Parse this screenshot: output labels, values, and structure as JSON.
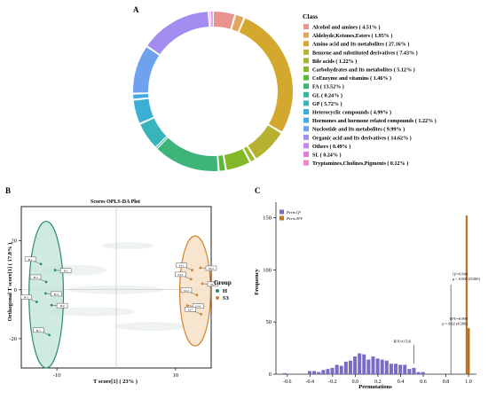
{
  "panels": {
    "a": "A",
    "b": "B",
    "c": "C"
  },
  "chart_data": [
    {
      "type": "pie",
      "style": "donut",
      "legend_title": "Class",
      "legend_placement": "right",
      "slices": [
        {
          "label": "Alcohol and amines ( 4.51% )",
          "value": 4.51,
          "color": "#e8948c"
        },
        {
          "label": "Aldehyde,Ketones,Esters ( 1.95% )",
          "value": 1.95,
          "color": "#dfa75e"
        },
        {
          "label": "Amino acid and Its metabolites ( 27.16% )",
          "value": 27.16,
          "color": "#d4a82e"
        },
        {
          "label": "Benzene and substituted derivatives ( 7.43% )",
          "value": 7.43,
          "color": "#b6b131"
        },
        {
          "label": "Bile acids ( 1.22% )",
          "value": 1.22,
          "color": "#9fb92e"
        },
        {
          "label": "Carbohydrates and Its metabolites ( 5.12% )",
          "value": 5.12,
          "color": "#84b829"
        },
        {
          "label": "CoEnzyme and vitamins ( 1.46% )",
          "value": 1.46,
          "color": "#5cb83a"
        },
        {
          "label": "FA ( 13.52% )",
          "value": 13.52,
          "color": "#3db579"
        },
        {
          "label": "GL ( 0.24% )",
          "value": 0.24,
          "color": "#37b49c"
        },
        {
          "label": "GP ( 5.72% )",
          "value": 5.72,
          "color": "#38b4bb"
        },
        {
          "label": "Heterocyclic compounds ( 4.99% )",
          "value": 4.99,
          "color": "#3cb0d4"
        },
        {
          "label": "Hormones and hormone related compounds ( 1.22% )",
          "value": 1.22,
          "color": "#46a9e6"
        },
        {
          "label": "Nucleotide and Its metabolites ( 9.99% )",
          "value": 9.99,
          "color": "#6ea1ee"
        },
        {
          "label": "Organic acid and Its derivatives ( 14.62% )",
          "value": 14.62,
          "color": "#a18ef0"
        },
        {
          "label": "Others ( 0.49% )",
          "value": 0.49,
          "color": "#c785ef"
        },
        {
          "label": "SL ( 0.24% )",
          "value": 0.24,
          "color": "#e07ee0"
        },
        {
          "label": "Tryptamines,Cholines,Pigments ( 0.12% )",
          "value": 0.12,
          "color": "#ee84c4"
        }
      ]
    },
    {
      "type": "scatter",
      "title": "Scores OPLS-DA Plot",
      "xlabel": "T score[1] ( 23% )",
      "ylabel": "Orthogonal T score[1] ( 17.8% )",
      "xlim": [
        -16,
        16
      ],
      "ylim": [
        -32,
        34
      ],
      "xticks": [
        -10,
        10
      ],
      "yticks": [
        -20,
        0,
        20
      ],
      "legend_title": "Group",
      "series": [
        {
          "name": "H",
          "color": "#2e8b6e",
          "points": [
            [
              -12.7,
              10.5
            ],
            [
              -10.3,
              8.0
            ],
            [
              -11.8,
              3.2
            ],
            [
              -11.9,
              -1.5
            ],
            [
              -13.4,
              -5.0
            ],
            [
              -10.9,
              -6.3
            ],
            [
              -11.3,
              -18.5
            ]
          ],
          "labels": [
            "H-1",
            "H-2",
            "H-3",
            "H-4",
            "H-5",
            "H-6",
            "H-7"
          ]
        },
        {
          "name": "S3",
          "color": "#d2812c",
          "points": [
            [
              12.8,
              8.0
            ],
            [
              14.2,
              9.0
            ],
            [
              12.6,
              4.3
            ],
            [
              14.5,
              2.5
            ],
            [
              13.6,
              -2.2
            ],
            [
              12.0,
              -6.5
            ],
            [
              14.3,
              -10.0
            ]
          ],
          "labels": [
            "S3-1",
            "S3-2",
            "S3-3",
            "S3-4",
            "S3-5",
            "S3-6",
            "S3-7"
          ]
        }
      ]
    },
    {
      "type": "bar",
      "subtype": "histogram",
      "xlabel": "Permutations",
      "ylabel": "Frequency",
      "xlim": [
        -0.7,
        1.07
      ],
      "ylim": [
        0,
        165
      ],
      "xticks": [
        "-0.6",
        "-0.4",
        "-0.2",
        "0.0",
        "0.2",
        "0.4",
        "0.6",
        "0.8",
        "1.0"
      ],
      "yticks": [
        0,
        50,
        100,
        150
      ],
      "legend_placement": "top-left",
      "series": [
        {
          "name": "Perm Q²",
          "color": "#7b6bc4",
          "bins": [
            [
              -0.62,
              1
            ],
            [
              -0.4,
              3
            ],
            [
              -0.36,
              3
            ],
            [
              -0.32,
              2
            ],
            [
              -0.28,
              4
            ],
            [
              -0.24,
              5
            ],
            [
              -0.2,
              6
            ],
            [
              -0.16,
              9
            ],
            [
              -0.12,
              8
            ],
            [
              -0.08,
              12
            ],
            [
              -0.04,
              13
            ],
            [
              0.0,
              17
            ],
            [
              0.04,
              20
            ],
            [
              0.08,
              19
            ],
            [
              0.12,
              14
            ],
            [
              0.16,
              17
            ],
            [
              0.2,
              15
            ],
            [
              0.24,
              14
            ],
            [
              0.28,
              13
            ],
            [
              0.32,
              10
            ],
            [
              0.36,
              10
            ],
            [
              0.4,
              9
            ],
            [
              0.44,
              9
            ],
            [
              0.48,
              5
            ],
            [
              0.52,
              6
            ],
            [
              0.56,
              2
            ],
            [
              0.6,
              2
            ]
          ]
        },
        {
          "name": "Perm R²Y",
          "color": "#c8741a",
          "bins": [
            [
              0.985,
              152
            ],
            [
              1.005,
              44
            ]
          ]
        }
      ],
      "annotations": [
        {
          "text": "R²X=0.516"
        },
        {
          "text": "Q²=0.844"
        },
        {
          "text": "p < 0.005 (0/200)"
        },
        {
          "text": "R²Y=0.998"
        },
        {
          "text": "p = 0.02 (4/200)"
        }
      ]
    }
  ]
}
